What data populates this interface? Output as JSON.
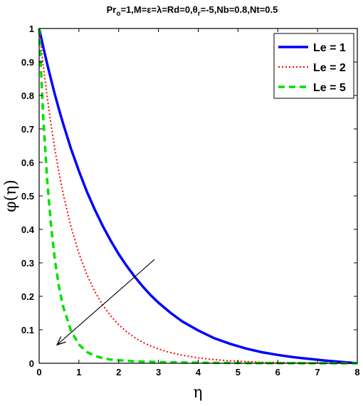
{
  "chart_data": {
    "type": "line",
    "title": {
      "part1": "Pr",
      "sub1": "o",
      "part2": "=1,M=ε=λ=Rd=0,θ",
      "sub2": "r",
      "part3": "=-5,Nb=0.8,Nt=0.5"
    },
    "xlabel": "η",
    "ylabel": "φ(η)",
    "xlim": [
      0,
      8
    ],
    "ylim": [
      0,
      1
    ],
    "xticks": [
      "0",
      "1",
      "2",
      "3",
      "4",
      "5",
      "6",
      "7",
      "8"
    ],
    "yticks": [
      "0",
      "0.1",
      "0.2",
      "0.3",
      "0.4",
      "0.5",
      "0.6",
      "0.7",
      "0.8",
      "0.9",
      "1"
    ],
    "grid": false,
    "legend_position": "top-right",
    "x": [
      0,
      0.1,
      0.2,
      0.3,
      0.4,
      0.5,
      0.6,
      0.8,
      1.0,
      1.2,
      1.4,
      1.6,
      1.8,
      2.0,
      2.2,
      2.4,
      2.6,
      2.8,
      3.0,
      3.3,
      3.6,
      4.0,
      4.4,
      4.8,
      5.2,
      5.6,
      6.0,
      6.4,
      6.8,
      7.2,
      7.6,
      8.0
    ],
    "series": [
      {
        "name": "Le = 1",
        "color": "#0000ff",
        "dash": "solid",
        "values": [
          1.0,
          0.946,
          0.895,
          0.847,
          0.801,
          0.758,
          0.717,
          0.641,
          0.574,
          0.513,
          0.459,
          0.41,
          0.366,
          0.326,
          0.291,
          0.259,
          0.23,
          0.204,
          0.181,
          0.151,
          0.125,
          0.098,
          0.075,
          0.058,
          0.044,
          0.033,
          0.025,
          0.018,
          0.013,
          0.008,
          0.004,
          0.0
        ]
      },
      {
        "name": "Le = 2",
        "color": "#ff0000",
        "dash": "dot",
        "values": [
          1.0,
          0.892,
          0.797,
          0.712,
          0.636,
          0.569,
          0.509,
          0.408,
          0.328,
          0.265,
          0.214,
          0.174,
          0.141,
          0.115,
          0.094,
          0.077,
          0.063,
          0.052,
          0.043,
          0.032,
          0.024,
          0.016,
          0.011,
          0.007,
          0.005,
          0.003,
          0.002,
          0.0015,
          0.001,
          0.0005,
          0.0002,
          0.0
        ]
      },
      {
        "name": "Le = 5",
        "color": "#00e000",
        "dash": "dash",
        "values": [
          1.0,
          0.74,
          0.55,
          0.41,
          0.305,
          0.228,
          0.171,
          0.097,
          0.056,
          0.034,
          0.022,
          0.015,
          0.011,
          0.009,
          0.0075,
          0.0062,
          0.0052,
          0.0044,
          0.0037,
          0.003,
          0.0024,
          0.0017,
          0.0012,
          0.0009,
          0.0006,
          0.0004,
          0.0003,
          0.0002,
          0.0001,
          0.0001,
          0.0,
          0.0
        ]
      }
    ],
    "annotation": {
      "type": "arrow",
      "from": [
        2.9,
        0.31
      ],
      "to": [
        0.45,
        0.055
      ]
    }
  }
}
